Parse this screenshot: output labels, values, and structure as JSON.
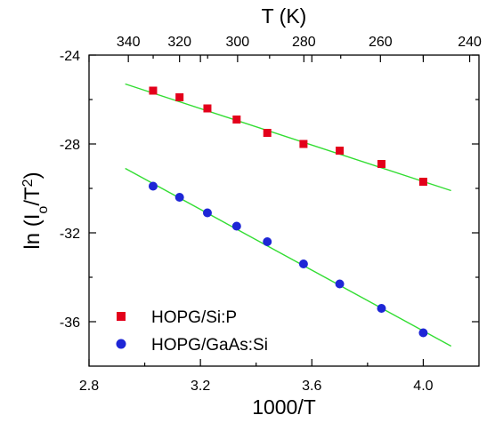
{
  "chart_data": {
    "type": "scatter",
    "xlabel": "1000/T",
    "top_xlabel": "T (K)",
    "ylabel_parts": {
      "pre": "ln (I",
      "sub": "o",
      "mid": "/T",
      "sup": "2",
      "post": ")"
    },
    "xlim": [
      2.8,
      4.2
    ],
    "ylim": [
      -38,
      -24
    ],
    "x_ticks": [
      2.8,
      3.2,
      3.6,
      4.0
    ],
    "x_tick_labels": [
      "2.8",
      "3.2",
      "3.6",
      "4.0"
    ],
    "x_minor_ticks": [
      3.0,
      3.4,
      3.8
    ],
    "y_ticks": [
      -24,
      -28,
      -32,
      -36
    ],
    "y_tick_labels": [
      "-24",
      "-28",
      "-32",
      "-36"
    ],
    "y_minor_ticks": [
      -26,
      -30,
      -34
    ],
    "top_ticks_T": [
      340,
      320,
      300,
      280,
      260,
      240
    ],
    "top_tick_labels": [
      "340",
      "320",
      "300",
      "280",
      "260",
      "240"
    ],
    "top_minor_ticks_T": [
      330,
      310,
      290,
      270,
      250
    ],
    "grid": false,
    "legend_position": "bottom-left",
    "series": [
      {
        "name": "HOPG/Si:P",
        "marker": "square",
        "color": "#e3001b",
        "x": [
          3.03,
          3.125,
          3.225,
          3.33,
          3.44,
          3.57,
          3.7,
          3.85,
          4.0
        ],
        "y": [
          -25.6,
          -25.9,
          -26.4,
          -26.9,
          -27.5,
          -28.0,
          -28.3,
          -28.9,
          -29.7
        ],
        "fit": {
          "x": [
            2.93,
            4.1
          ],
          "y": [
            -25.3,
            -30.1
          ],
          "color": "#33dd33"
        }
      },
      {
        "name": "HOPG/GaAs:Si",
        "marker": "circle",
        "color": "#1e26d6",
        "x": [
          3.03,
          3.125,
          3.225,
          3.33,
          3.44,
          3.57,
          3.7,
          3.85,
          4.0
        ],
        "y": [
          -29.9,
          -30.4,
          -31.1,
          -31.7,
          -32.4,
          -33.4,
          -34.3,
          -35.4,
          -36.5
        ],
        "fit": {
          "x": [
            2.93,
            4.1
          ],
          "y": [
            -29.1,
            -37.1
          ],
          "color": "#33dd33"
        }
      }
    ]
  }
}
